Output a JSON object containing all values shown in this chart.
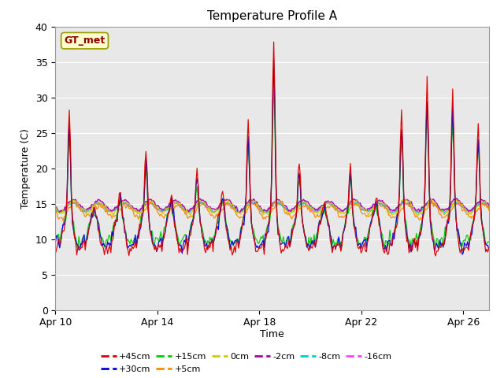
{
  "title": "Temperature Profile A",
  "xlabel": "Time",
  "ylabel": "Temperature (C)",
  "ylim": [
    0,
    40
  ],
  "xtick_labels": [
    "Apr 10",
    "Apr 14",
    "Apr 18",
    "Apr 22",
    "Apr 26"
  ],
  "xtick_positions": [
    0,
    4,
    8,
    12,
    16
  ],
  "series_colors": {
    "+45cm": "#dd0000",
    "+30cm": "#0000dd",
    "+15cm": "#00cc00",
    "+5cm": "#ff8800",
    "0cm": "#cccc00",
    "-2cm": "#aa00aa",
    "-8cm": "#00cccc",
    "-16cm": "#ff44ff"
  },
  "legend_order": [
    "+45cm",
    "+30cm",
    "+15cm",
    "+5cm",
    "0cm",
    "-2cm",
    "-8cm",
    "-16cm"
  ],
  "annotation_text": "GT_met",
  "background_color": "#e8e8e8",
  "plot_bg": "#e8e8e8",
  "title_fontsize": 11,
  "axis_label_fontsize": 9
}
